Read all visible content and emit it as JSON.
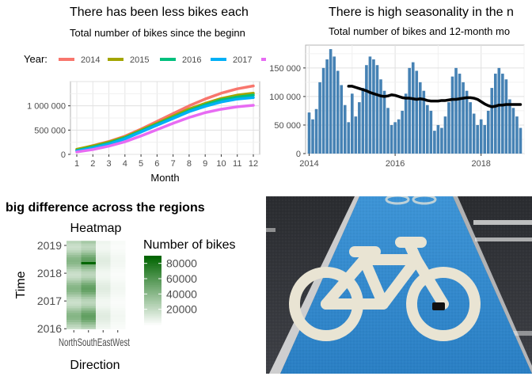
{
  "chart_data": [
    {
      "type": "line",
      "title": "There has been less bikes each",
      "subtitle": "Total number of bikes since the beginn",
      "xlabel": "Month",
      "ylabel": "",
      "legend_title": "Year:",
      "legend_position": "top",
      "grid": true,
      "xlim": [
        1,
        12
      ],
      "ylim": [
        0,
        1500000
      ],
      "x": [
        1,
        2,
        3,
        4,
        5,
        6,
        7,
        8,
        9,
        10,
        11,
        12
      ],
      "xticks": [
        "1",
        "2",
        "3",
        "4",
        "5",
        "6",
        "7",
        "8",
        "9",
        "10",
        "11",
        "12"
      ],
      "yticks": [
        0,
        500000,
        1000000
      ],
      "ytick_labels": [
        "0",
        "500 000",
        "1 000 000"
      ],
      "series": [
        {
          "name": "2014",
          "color": "#F8766D",
          "values": [
            95000,
            180000,
            265000,
            375000,
            520000,
            680000,
            840000,
            1000000,
            1140000,
            1260000,
            1350000,
            1410000
          ]
        },
        {
          "name": "2015",
          "color": "#A3A500",
          "values": [
            105000,
            175000,
            255000,
            355000,
            500000,
            640000,
            790000,
            935000,
            1050000,
            1150000,
            1220000,
            1260000
          ]
        },
        {
          "name": "2016",
          "color": "#00BF7D",
          "values": [
            80000,
            150000,
            230000,
            340000,
            480000,
            620000,
            760000,
            900000,
            1020000,
            1120000,
            1180000,
            1220000
          ]
        },
        {
          "name": "2017",
          "color": "#00B0F6",
          "values": [
            70000,
            130000,
            210000,
            320000,
            460000,
            600000,
            740000,
            880000,
            990000,
            1080000,
            1140000,
            1170000
          ]
        },
        {
          "name": "",
          "color": "#E76BF3",
          "values": [
            50000,
            100000,
            170000,
            260000,
            380000,
            510000,
            640000,
            760000,
            860000,
            930000,
            980000,
            1010000
          ]
        }
      ]
    },
    {
      "type": "bar",
      "title": "There is high seasonality in the n",
      "subtitle": "Total number of bikes and 12-month mo",
      "xlabel": "",
      "ylabel": "",
      "grid": true,
      "xlim": [
        2013.917,
        2019.0
      ],
      "ylim": [
        0,
        190000
      ],
      "xticks": [
        2014,
        2016,
        2018
      ],
      "xtick_labels": [
        "2014",
        "2016",
        "2018"
      ],
      "yticks": [
        0,
        50000,
        100000,
        150000
      ],
      "ytick_labels": [
        "0",
        "50 000",
        "100 000",
        "150 000"
      ],
      "bar_color": "#4682B4",
      "monthly_values": [
        72000,
        60000,
        78000,
        125000,
        150000,
        165000,
        183000,
        170000,
        145000,
        120000,
        85000,
        55000,
        105000,
        65000,
        90000,
        115000,
        155000,
        170000,
        165000,
        155000,
        130000,
        110000,
        80000,
        50000,
        55000,
        60000,
        75000,
        105000,
        150000,
        160000,
        145000,
        125000,
        110000,
        85000,
        75000,
        40000,
        50000,
        45000,
        65000,
        90000,
        135000,
        150000,
        140000,
        125000,
        110000,
        90000,
        70000,
        50000,
        60000,
        50000,
        75000,
        115000,
        140000,
        150000,
        140000,
        130000,
        95000,
        80000,
        65000,
        45000
      ],
      "moving_average": {
        "color": "#000000",
        "start_index": 11,
        "values": [
          118000,
          118000,
          116000,
          114000,
          112000,
          110000,
          107000,
          105000,
          103000,
          101000,
          100000,
          101000,
          103000,
          102000,
          100000,
          98000,
          97000,
          97000,
          96000,
          95000,
          96000,
          95000,
          93000,
          92000,
          92000,
          92000,
          93000,
          93000,
          94000,
          95000,
          95000,
          96000,
          97000,
          98000,
          98000,
          97000,
          95000,
          91000,
          87000,
          84000,
          82000,
          83000,
          85000,
          85000,
          86000,
          86000,
          86000,
          86000,
          86000
        ]
      }
    },
    {
      "type": "heatmap",
      "title": "Heatmap",
      "page_heading": "big difference across the regions",
      "xlabel": "Direction",
      "ylabel": "Time",
      "categories": [
        "North",
        "South",
        "East",
        "West"
      ],
      "xtick_text": "NorthSouthEastWest",
      "ylim": [
        2015.95,
        2019.2
      ],
      "yticks": [
        2016,
        2017,
        2018,
        2019
      ],
      "ytick_labels": [
        "2016",
        "2017",
        "2018",
        "2019"
      ],
      "legend_title": "Number of bikes",
      "legend_ticks": [
        20000,
        40000,
        60000,
        80000
      ],
      "legend_tick_labels": [
        "20000",
        "40000",
        "60000",
        "80000"
      ],
      "color_low": "#ffffff",
      "color_high": "#006400",
      "value_range": [
        0,
        90000
      ],
      "series": [
        {
          "name": "North",
          "level": 0.48
        },
        {
          "name": "South",
          "level": 0.62
        },
        {
          "name": "East",
          "level": 0.12
        },
        {
          "name": "West",
          "level": 0.05
        }
      ]
    }
  ],
  "photo": {
    "description_icon": "bicycle-lane-icon",
    "lane_color": "#2e86c9",
    "road_color": "#3a3d42"
  }
}
